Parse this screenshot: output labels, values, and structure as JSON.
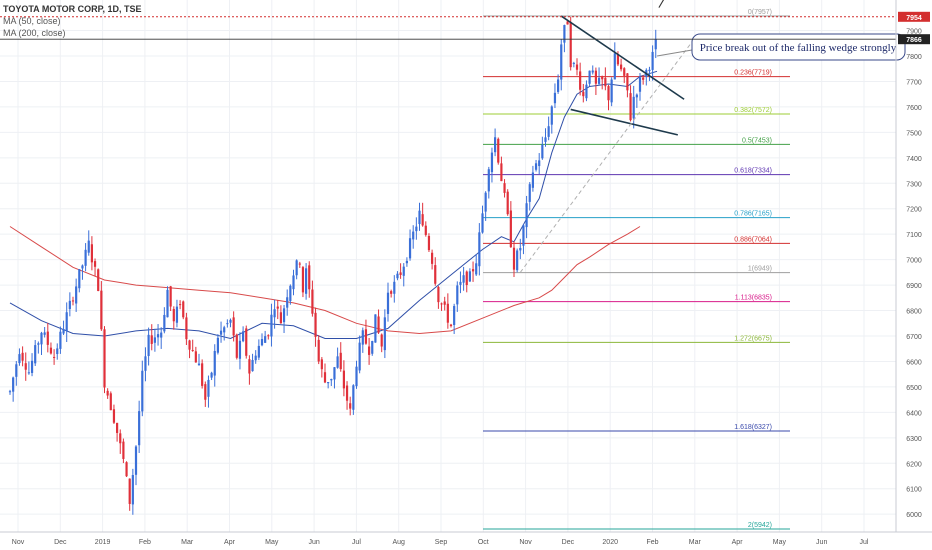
{
  "header": {
    "symbol": "TOYOTA MOTOR CORP, 1D, TSE",
    "ma50": "MA (50, close)",
    "ma200": "MA (200, close)"
  },
  "price_labels": {
    "high": "7954",
    "current": "7866"
  },
  "annotation": {
    "text": "Price break out of the falling wedge strongly"
  },
  "colors": {
    "up": "#3a6fd8",
    "down": "#e0303a",
    "ma50": "#2f4fa8",
    "ma200": "#d84a4a",
    "high_line": "#d32f2f",
    "current_line": "#333333"
  },
  "chart_data": {
    "type": "candlestick",
    "title": "TOYOTA MOTOR CORP, 1D, TSE",
    "x_ticks": [
      "Nov",
      "Dec",
      "2019",
      "Feb",
      "Mar",
      "Apr",
      "May",
      "Jun",
      "Jul",
      "Aug",
      "Sep",
      "Oct",
      "Nov",
      "Dec",
      "2020",
      "Feb",
      "Mar",
      "Apr",
      "May",
      "Jun",
      "Jul"
    ],
    "y_ticks": [
      6000,
      6100,
      6200,
      6300,
      6400,
      6500,
      6600,
      6700,
      6800,
      6900,
      7000,
      7100,
      7200,
      7300,
      7400,
      7500,
      7600,
      7700,
      7800,
      7900
    ],
    "ylim": [
      5930,
      8020
    ],
    "price_path": [
      [
        0,
        6480
      ],
      [
        1.5,
        6650
      ],
      [
        3,
        6560
      ],
      [
        5,
        6720
      ],
      [
        7,
        6620
      ],
      [
        9,
        6780
      ],
      [
        11,
        6940
      ],
      [
        12.5,
        7060
      ],
      [
        14,
        6900
      ],
      [
        15,
        6520
      ],
      [
        16.5,
        6380
      ],
      [
        18,
        6210
      ],
      [
        19,
        6050
      ],
      [
        20,
        6270
      ],
      [
        21,
        6540
      ],
      [
        22,
        6680
      ],
      [
        24,
        6720
      ],
      [
        25,
        6880
      ],
      [
        26,
        6750
      ],
      [
        27,
        6840
      ],
      [
        28,
        6700
      ],
      [
        30,
        6580
      ],
      [
        31,
        6450
      ],
      [
        32,
        6560
      ],
      [
        33,
        6700
      ],
      [
        35,
        6760
      ],
      [
        36,
        6620
      ],
      [
        37,
        6700
      ],
      [
        38,
        6560
      ],
      [
        39,
        6640
      ],
      [
        41,
        6720
      ],
      [
        42,
        6830
      ],
      [
        43,
        6760
      ],
      [
        44,
        6870
      ],
      [
        45,
        6950
      ],
      [
        46,
        7000
      ],
      [
        46.5,
        6880
      ],
      [
        47,
        6950
      ],
      [
        48,
        6800
      ],
      [
        49,
        6600
      ],
      [
        50,
        6520
      ],
      [
        51,
        6540
      ],
      [
        52,
        6610
      ],
      [
        53,
        6500
      ],
      [
        54,
        6400
      ],
      [
        55,
        6600
      ],
      [
        56,
        6700
      ],
      [
        57,
        6650
      ],
      [
        58,
        6760
      ],
      [
        59,
        6660
      ],
      [
        60,
        6880
      ],
      [
        61,
        6900
      ],
      [
        62,
        6950
      ],
      [
        63,
        7020
      ],
      [
        64,
        7100
      ],
      [
        65,
        7180
      ],
      [
        65.5,
        7120
      ],
      [
        66,
        7100
      ],
      [
        67,
        7000
      ],
      [
        68,
        6850
      ],
      [
        69,
        6800
      ],
      [
        70,
        6740
      ],
      [
        71,
        6880
      ],
      [
        72,
        6920
      ],
      [
        73,
        6930
      ],
      [
        74,
        7000
      ],
      [
        75,
        7180
      ],
      [
        76,
        7380
      ],
      [
        77,
        7480
      ],
      [
        78,
        7320
      ],
      [
        79,
        7160
      ],
      [
        80,
        6980
      ],
      [
        81,
        7050
      ],
      [
        82,
        7200
      ],
      [
        83,
        7350
      ],
      [
        84,
        7400
      ],
      [
        85,
        7480
      ],
      [
        86,
        7600
      ],
      [
        87,
        7720
      ],
      [
        87.5,
        7850
      ],
      [
        88,
        7900
      ],
      [
        88.5,
        7940
      ],
      [
        89,
        7780
      ],
      [
        90,
        7740
      ],
      [
        91,
        7640
      ],
      [
        92,
        7760
      ],
      [
        93,
        7680
      ],
      [
        94,
        7700
      ],
      [
        95,
        7640
      ],
      [
        96,
        7790
      ],
      [
        97,
        7740
      ],
      [
        98,
        7660
      ],
      [
        98.5,
        7560
      ],
      [
        99,
        7640
      ],
      [
        100,
        7700
      ],
      [
        101,
        7740
      ],
      [
        102,
        7800
      ],
      [
        102.7,
        7866
      ]
    ],
    "moving_averages": [
      {
        "name": "MA (50, close)",
        "points": [
          [
            0,
            6830
          ],
          [
            5,
            6760
          ],
          [
            10,
            6710
          ],
          [
            15,
            6700
          ],
          [
            20,
            6720
          ],
          [
            25,
            6730
          ],
          [
            30,
            6720
          ],
          [
            35,
            6690
          ],
          [
            40,
            6750
          ],
          [
            45,
            6740
          ],
          [
            50,
            6690
          ],
          [
            55,
            6690
          ],
          [
            60,
            6730
          ],
          [
            65,
            6840
          ],
          [
            70,
            6940
          ],
          [
            75,
            7040
          ],
          [
            78,
            7090
          ],
          [
            80,
            7070
          ],
          [
            82,
            7160
          ],
          [
            84,
            7240
          ],
          [
            86,
            7420
          ],
          [
            88,
            7560
          ],
          [
            90,
            7650
          ],
          [
            92,
            7680
          ],
          [
            95,
            7690
          ],
          [
            98,
            7680
          ],
          [
            100,
            7720
          ],
          [
            102.7,
            7740
          ]
        ]
      },
      {
        "name": "MA (200, close)",
        "points": [
          [
            0,
            7130
          ],
          [
            5,
            7050
          ],
          [
            10,
            6970
          ],
          [
            15,
            6920
          ],
          [
            20,
            6900
          ],
          [
            25,
            6890
          ],
          [
            30,
            6880
          ],
          [
            35,
            6870
          ],
          [
            40,
            6850
          ],
          [
            45,
            6830
          ],
          [
            50,
            6800
          ],
          [
            55,
            6750
          ],
          [
            60,
            6720
          ],
          [
            65,
            6710
          ],
          [
            70,
            6720
          ],
          [
            75,
            6770
          ],
          [
            80,
            6820
          ],
          [
            84,
            6850
          ],
          [
            86,
            6880
          ],
          [
            88,
            6930
          ],
          [
            90,
            6980
          ],
          [
            92,
            7010
          ],
          [
            95,
            7060
          ],
          [
            98,
            7100
          ],
          [
            100,
            7130
          ]
        ]
      }
    ],
    "fibonacci": [
      {
        "label": "0(7957)",
        "value": 7957,
        "color": "#9e9e9e"
      },
      {
        "label": "0.236(7719)",
        "value": 7719,
        "color": "#d32f2f"
      },
      {
        "label": "0.382(7572)",
        "value": 7572,
        "color": "#9ccc36"
      },
      {
        "label": "0.5(7453)",
        "value": 7453,
        "color": "#43a047"
      },
      {
        "label": "0.618(7334)",
        "value": 7334,
        "color": "#5e35b1"
      },
      {
        "label": "0.786(7165)",
        "value": 7165,
        "color": "#26a0c8"
      },
      {
        "label": "0.886(7064)",
        "value": 7064,
        "color": "#d32f2f"
      },
      {
        "label": "1(6949)",
        "value": 6949,
        "color": "#9e9e9e"
      },
      {
        "label": "1.113(6835)",
        "value": 6835,
        "color": "#d81b8a"
      },
      {
        "label": "1.272(6675)",
        "value": 6675,
        "color": "#8bb73a"
      },
      {
        "label": "1.618(6327)",
        "value": 6327,
        "color": "#3949ab"
      },
      {
        "label": "2(5942)",
        "value": 5942,
        "color": "#26a69a"
      }
    ],
    "wedge_lines": [
      {
        "name": "upper-trendline",
        "from": [
          87.5,
          7957
        ],
        "to": [
          107,
          7630
        ]
      },
      {
        "name": "lower-trendline",
        "from": [
          89,
          7590
        ],
        "to": [
          106,
          7490
        ]
      },
      {
        "name": "dashed-trendline",
        "from": [
          81,
          6950
        ],
        "to": [
          109,
          7880
        ]
      },
      {
        "name": "breakout-arrow",
        "from": [
          103,
          7990
        ],
        "to": [
          108,
          8200
        ]
      }
    ],
    "grid": true,
    "xlim": [
      0,
      140
    ]
  }
}
